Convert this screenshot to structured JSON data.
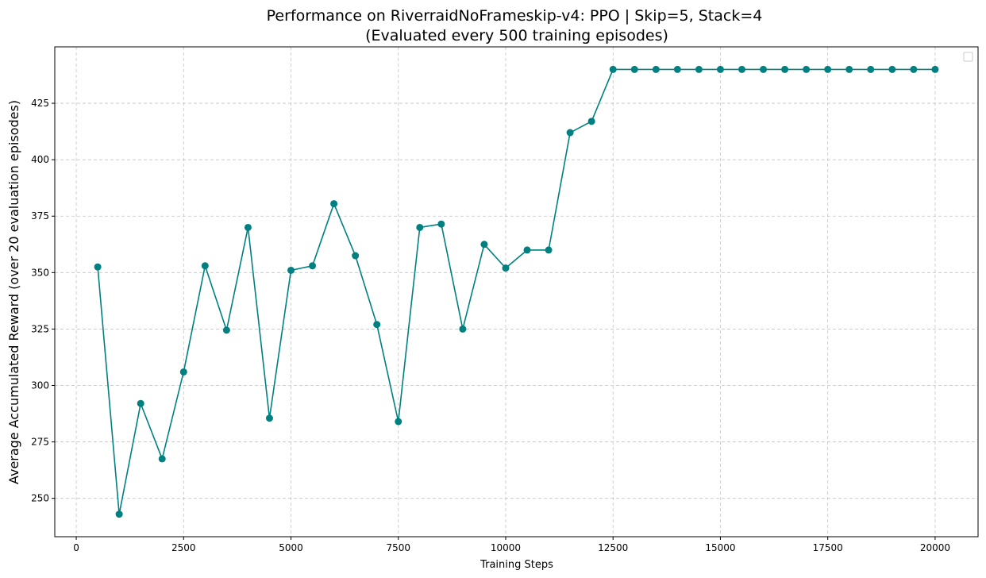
{
  "chart_data": {
    "type": "line",
    "title": "Performance on RiverraidNoFrameskip-v4: PPO | Skip=5, Stack=4",
    "subtitle": "(Evaluated every 500 training episodes)",
    "xlabel": "Training Steps",
    "ylabel": "Average Accumulated Reward (over 20 evaluation episodes)",
    "xlim": [
      -500,
      21000
    ],
    "ylim": [
      233,
      450
    ],
    "xticks": [
      0,
      2500,
      5000,
      7500,
      10000,
      12500,
      15000,
      17500,
      20000
    ],
    "yticks": [
      250,
      275,
      300,
      325,
      350,
      375,
      400,
      425
    ],
    "grid": true,
    "legend": "top-right (empty)",
    "series": [
      {
        "color": "#008080",
        "marker": "circle",
        "x": [
          500,
          1000,
          1500,
          2000,
          2500,
          3000,
          3500,
          4000,
          4500,
          5000,
          5500,
          6000,
          6500,
          7000,
          7500,
          8000,
          8500,
          9000,
          9500,
          10000,
          10500,
          11000,
          11500,
          12000,
          12500,
          13000,
          13500,
          14000,
          14500,
          15000,
          15500,
          16000,
          16500,
          17000,
          17500,
          18000,
          18500,
          19000,
          19500,
          20000
        ],
        "y": [
          352.5,
          243,
          292,
          267.5,
          306,
          353,
          324.5,
          370,
          285.5,
          351,
          353,
          380.5,
          357.5,
          327,
          284,
          370,
          371.5,
          325,
          362.5,
          352,
          360,
          360,
          412,
          417,
          440,
          440,
          440,
          440,
          440,
          440,
          440,
          440,
          440,
          440,
          440,
          440,
          440,
          440,
          440,
          440
        ]
      }
    ]
  }
}
